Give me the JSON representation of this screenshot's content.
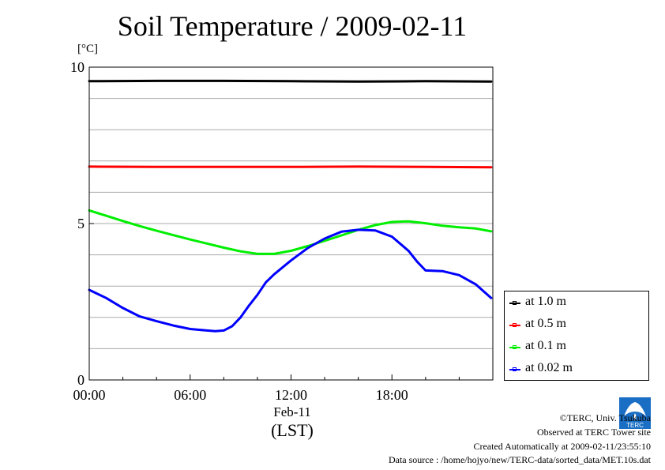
{
  "chart_data": {
    "type": "line",
    "title": "Soil Temperature / 2009-02-11",
    "ylabel": "[°C]",
    "xlabel": "(LST)",
    "x_date_label": "Feb-11",
    "ylim": [
      0,
      10
    ],
    "y_ticks": [
      "0",
      "5",
      "10"
    ],
    "xlim": [
      0,
      24
    ],
    "x_ticks": [
      {
        "value": 0,
        "label": "00:00"
      },
      {
        "value": 6,
        "label": "06:00"
      },
      {
        "value": 12,
        "label": "12:00"
      },
      {
        "value": 18,
        "label": "18:00"
      }
    ],
    "grid": true,
    "legend_position": "right-bottom",
    "series": [
      {
        "name": "at 1.0 m",
        "color": "#000000",
        "x": [
          0,
          4,
          8,
          12,
          16,
          20,
          23.9
        ],
        "y": [
          9.55,
          9.56,
          9.56,
          9.55,
          9.54,
          9.55,
          9.54
        ]
      },
      {
        "name": "at 0.5 m",
        "color": "#ff0000",
        "x": [
          0,
          4,
          8,
          12,
          16,
          20,
          23.9
        ],
        "y": [
          6.82,
          6.81,
          6.81,
          6.81,
          6.82,
          6.81,
          6.8
        ]
      },
      {
        "name": "at 0.1 m",
        "color": "#00ee00",
        "x": [
          0,
          1,
          2,
          3,
          4,
          5,
          6,
          7,
          8,
          9,
          10,
          11,
          12,
          13,
          14,
          15,
          16,
          17,
          18,
          19,
          20,
          21,
          22,
          23,
          23.9
        ],
        "y": [
          5.42,
          5.25,
          5.08,
          4.92,
          4.77,
          4.63,
          4.49,
          4.36,
          4.23,
          4.11,
          4.03,
          4.03,
          4.13,
          4.28,
          4.45,
          4.62,
          4.8,
          4.95,
          5.05,
          5.07,
          5.01,
          4.93,
          4.88,
          4.84,
          4.75
        ]
      },
      {
        "name": "at 0.02 m",
        "color": "#0000ff",
        "x": [
          0,
          1,
          2,
          3,
          4,
          5,
          6,
          7,
          7.5,
          8,
          8.5,
          9,
          9.5,
          10,
          10.5,
          11,
          12,
          13,
          14,
          15,
          16,
          17,
          18,
          19,
          19.5,
          20,
          21,
          22,
          23,
          23.9
        ],
        "y": [
          2.88,
          2.62,
          2.3,
          2.03,
          1.88,
          1.74,
          1.63,
          1.58,
          1.56,
          1.58,
          1.72,
          2.0,
          2.38,
          2.72,
          3.12,
          3.38,
          3.82,
          4.22,
          4.52,
          4.74,
          4.8,
          4.78,
          4.58,
          4.12,
          3.78,
          3.5,
          3.48,
          3.35,
          3.05,
          2.62
        ]
      }
    ]
  },
  "footer": {
    "copyright": "©TERC, Univ. Tsukuba",
    "site": "Observed at TERC Tower site",
    "created": "Created Automatically at 2009-02-11/23:55:10",
    "source": "Data source : /home/hojyo/new/TERC-data/sorted_data/MET.10s.dat"
  },
  "logo": {
    "text": "TERC",
    "color": "#1a6fc4"
  }
}
